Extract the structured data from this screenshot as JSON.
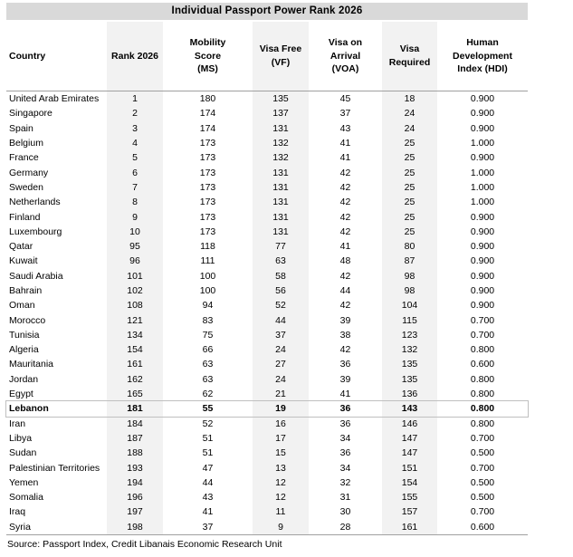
{
  "chart_data": {
    "type": "table",
    "title": "Individual Passport Power Rank 2026",
    "columns": [
      "Country",
      "Rank 2026",
      "Mobility Score (MS)",
      "Visa Free (VF)",
      "Visa on Arrival (VOA)",
      "Visa Required",
      "Human Development Index (HDI)"
    ],
    "rows": [
      [
        "United Arab Emirates",
        1,
        180,
        135,
        45,
        18,
        "0.900"
      ],
      [
        "Singapore",
        2,
        174,
        137,
        37,
        24,
        "0.900"
      ],
      [
        "Spain",
        3,
        174,
        131,
        43,
        24,
        "0.900"
      ],
      [
        "Belgium",
        4,
        173,
        132,
        41,
        25,
        "1.000"
      ],
      [
        "France",
        5,
        173,
        132,
        41,
        25,
        "0.900"
      ],
      [
        "Germany",
        6,
        173,
        131,
        42,
        25,
        "1.000"
      ],
      [
        "Sweden",
        7,
        173,
        131,
        42,
        25,
        "1.000"
      ],
      [
        "Netherlands",
        8,
        173,
        131,
        42,
        25,
        "1.000"
      ],
      [
        "Finland",
        9,
        173,
        131,
        42,
        25,
        "0.900"
      ],
      [
        "Luxembourg",
        10,
        173,
        131,
        42,
        25,
        "0.900"
      ],
      [
        "Qatar",
        95,
        118,
        77,
        41,
        80,
        "0.900"
      ],
      [
        "Kuwait",
        96,
        111,
        63,
        48,
        87,
        "0.900"
      ],
      [
        "Saudi Arabia",
        101,
        100,
        58,
        42,
        98,
        "0.900"
      ],
      [
        "Bahrain",
        102,
        100,
        56,
        44,
        98,
        "0.900"
      ],
      [
        "Oman",
        108,
        94,
        52,
        42,
        104,
        "0.900"
      ],
      [
        "Morocco",
        121,
        83,
        44,
        39,
        115,
        "0.700"
      ],
      [
        "Tunisia",
        134,
        75,
        37,
        38,
        123,
        "0.700"
      ],
      [
        "Algeria",
        154,
        66,
        24,
        42,
        132,
        "0.800"
      ],
      [
        "Mauritania",
        161,
        63,
        27,
        36,
        135,
        "0.600"
      ],
      [
        "Jordan",
        162,
        63,
        24,
        39,
        135,
        "0.800"
      ],
      [
        "Egypt",
        165,
        62,
        21,
        41,
        136,
        "0.800"
      ],
      [
        "Lebanon",
        181,
        55,
        19,
        36,
        143,
        "0.800"
      ],
      [
        "Iran",
        184,
        52,
        16,
        36,
        146,
        "0.800"
      ],
      [
        "Libya",
        187,
        51,
        17,
        34,
        147,
        "0.700"
      ],
      [
        "Sudan",
        188,
        51,
        15,
        36,
        147,
        "0.500"
      ],
      [
        "Palestinian Territories",
        193,
        47,
        13,
        34,
        151,
        "0.700"
      ],
      [
        "Yemen",
        194,
        44,
        12,
        32,
        154,
        "0.500"
      ],
      [
        "Somalia",
        196,
        43,
        12,
        31,
        155,
        "0.500"
      ],
      [
        "Iraq",
        197,
        41,
        11,
        30,
        157,
        "0.700"
      ],
      [
        "Syria",
        198,
        37,
        9,
        28,
        161,
        "0.600"
      ]
    ],
    "highlighted_row": "Lebanon",
    "source": "Source: Passport Index, Credit Libanais Economic Research Unit"
  },
  "layout": {
    "header_labels": {
      "country": "Country",
      "rank": "Rank 2026",
      "mobility_score": "Mobility\nScore\n(MS)",
      "visa_free": "Visa Free\n(VF)",
      "visa_on_arrival": "Visa on\nArrival\n(VOA)",
      "visa_required": "Visa\nRequired",
      "hdi": "Human\nDevelopment\nIndex (HDI)"
    },
    "banded_column_indexes": [
      1,
      3,
      5
    ]
  },
  "colors": {
    "title_bg": "#D9D9D9",
    "band_bg": "#F2F2F2",
    "rule": "#A0A0A0",
    "highlight_border": "#BFBFBF",
    "text": "#000000"
  }
}
